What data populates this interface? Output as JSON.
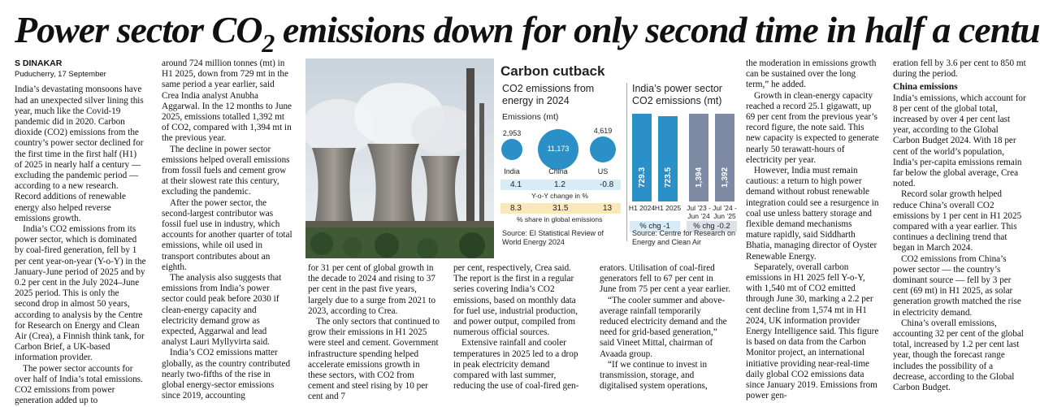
{
  "headline": {
    "part1": "Power sector CO",
    "subscript": "2",
    "part2": " emissions down for only second time in half a century"
  },
  "byline": {
    "author": "S DINAKAR",
    "dateline": "Puducherry, 17 September"
  },
  "columns": {
    "c1": [
      "India’s devastating monsoons have had an unexpected silver lining this year, much like the Covid-19 pandemic did in 2020. Carbon dioxide (CO2) emissions from the country’s power sector declined for the first time in the first half (H1) of 2025 in nearly half a century — excluding the pandemic period — according to a new research. Record additions of renewable energy also helped reverse emissions growth.",
      "India’s CO2 emissions from its power sector, which is dominated by coal-fired generation, fell by 1 per cent year-on-year (Y-o-Y) in the January-June period of 2025 and by 0.2 per cent in the July 2024–June 2025 period. This is only the second drop in almost 50 years, according to analysis by the Centre for Research on Energy and Clean Air (Crea), a Finnish think tank, for Carbon Brief, a UK-based information provider.",
      "The power sector accounts for over half of India’s total emissions. CO2 emissions from power generation added up to"
    ],
    "c2": [
      "around 724 million tonnes (mt) in H1 2025, down from 729 mt in the same period a year earlier, said Crea India analyst Anubha Aggarwal. In the 12 months to June 2025, emissions totalled 1,392 mt of CO2, compared with 1,394 mt in the previous year.",
      "The decline in power sector emissions helped overall emissions from fossil fuels and cement grow at their slowest rate this century, excluding the pandemic.",
      "After the power sector, the second-largest contributor was fossil fuel use in industry, which accounts for another quarter of total emissions, while oil used in transport contributes about an eighth.",
      "The analysis also suggests that emissions from India’s power sector could peak before 2030 if clean-energy capacity and electricity demand grow as expected, Aggarwal and lead analyst Lauri Myllyvirta said.",
      "India’s CO2 emissions matter globally, as the country contributed nearly two-fifths of the rise in global energy-sector emissions since 2019, accounting"
    ],
    "c3": [
      "for 31 per cent of global growth in the decade to 2024 and rising to 37 per cent in the past five years, largely due to a surge from 2021 to 2023, according to Crea.",
      "The only sectors that continued to grow their emissions in H1 2025 were steel and cement. Government infrastructure spending helped accelerate emissions growth in these sectors, with CO2 from cement and steel rising by 10 per cent and 7"
    ],
    "c4": [
      "per cent, respectively, Crea said. The report is the first in a regular series covering India’s CO2 emissions, based on monthly data for fuel use, industrial production, and power output, compiled from numerous official sources.",
      "Extensive rainfall and cooler temperatures in 2025 led to a drop in peak electricity demand compared with last summer, reducing the use of coal-fired gen-"
    ],
    "c5": [
      "erators. Utilisation of coal-fired generators fell to 67 per cent in June from 75 per cent a year earlier.",
      "“The cooler summer and above-average rainfall temporarily reduced electricity demand and the need for grid-based generation,” said Vineet Mittal, chairman of Avaada group.",
      "“If we continue to invest in transmission, storage, and digitalised system operations,"
    ],
    "c6": [
      "the moderation in emissions growth can be sustained over the long term,” he added.",
      "Growth in clean-energy capacity reached a record 25.1 gigawatt, up 69 per cent from the previous year’s record figure, the note said. This new capacity is expected to generate nearly 50 terawatt-hours of electricity per year.",
      "However, India must remain cautious: a return to high power demand without robust renewable integration could see a resurgence in coal use unless battery storage and flexible demand mechanisms mature rapidly, said Siddharth Bhatia, managing director of Oyster Renewable Energy.",
      "Separately, overall carbon emissions in H1 2025 fell Y-o-Y, with 1,540 mt of CO2 emitted through June 30, marking a 2.2 per cent decline from 1,574 mt in H1 2024, UK information provider Energy Intelligence said. This figure is based on data from the Carbon Monitor project, an international initiative providing near-real-time daily global CO2 emissions data since January 2019. Emissions from power gen-"
    ],
    "c7_top": "eration fell by 3.6 per cent to 850 mt during the period.",
    "c7_subhead": "China emissions",
    "c7": [
      "India’s emissions, which account for 8 per cent of the global total, increased by over 4 per cent last year, according to the Global Carbon Budget 2024. With 18 per cent of the world’s population, India’s per-capita emissions remain far below the global average, Crea noted.",
      "Record solar growth helped reduce China’s overall CO2 emissions by 1 per cent in H1 2025 compared with a year earlier. This continues a declining trend that began in March 2024.",
      "CO2 emissions from China’s power sector — the country’s dominant source — fell by 3 per cent (69 mt) in H1 2025, as solar generation growth matched the rise in electricity demand.",
      "China’s overall emissions, accounting 32 per cent of the global total, increased by 1.2 per cent last year, though the forecast range includes the possibility of a decrease, according to the Global Carbon Budget."
    ]
  },
  "chart_data": [
    {
      "type": "bubble",
      "title": "Carbon cutback",
      "subtitle": "CO2 emissions from energy in 2024",
      "units": "Emissions (mt)",
      "categories": [
        "India",
        "China",
        "US"
      ],
      "values": [
        2953,
        11173,
        4619
      ],
      "value_labels": [
        "2,953",
        "11,173",
        "4,619"
      ],
      "yoy_change_pct": [
        "4.1",
        "1.2",
        "-0.8"
      ],
      "yoy_caption": "Y-o-Y change in %",
      "global_share_pct": [
        "8.3",
        "31.5",
        "13"
      ],
      "share_caption": "% share in global emissions",
      "source": "Source: EI Statistical Review of World Energy 2024",
      "colors": {
        "bubble": "#2b8fc8",
        "yoy_strip": "#d8ecf7",
        "share_strip": "#fbe8b8"
      }
    },
    {
      "type": "bar",
      "title": "India’s power sector CO2 emissions (mt)",
      "categories": [
        "H1 2024",
        "H1 2025",
        "Jul ’23 - Jun ’24",
        "Jul ’24 - Jun ’25"
      ],
      "values": [
        729.3,
        723.5,
        1394,
        1392
      ],
      "value_labels": [
        "729.3",
        "723.5",
        "1,394",
        "1,392"
      ],
      "groups": [
        {
          "label": "% chg -1",
          "members": [
            0,
            1
          ],
          "color": "#2b8fc8"
        },
        {
          "label": "% chg -0.2",
          "members": [
            2,
            3
          ],
          "color": "#7c8aa3"
        }
      ],
      "source": "Source: Centre for Research on Energy and Clean Air"
    }
  ]
}
